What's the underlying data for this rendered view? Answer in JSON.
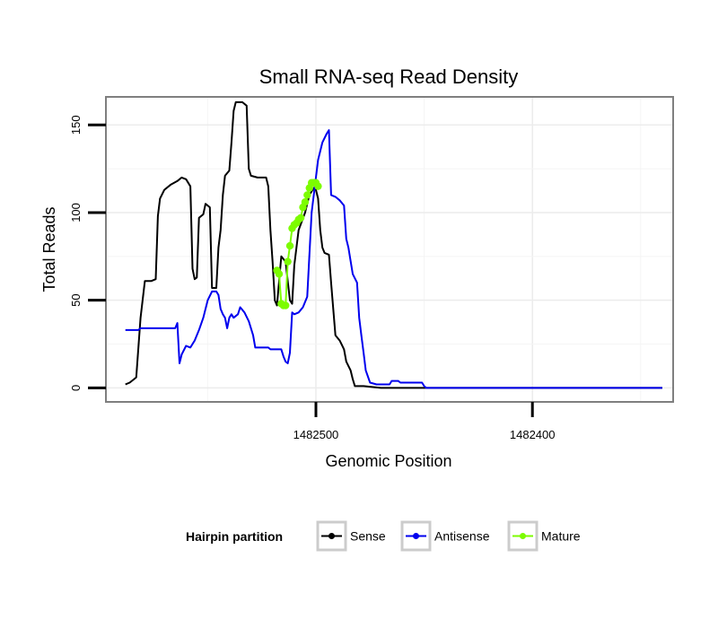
{
  "chart_data": {
    "type": "line",
    "title": "Small RNA-seq Read Density",
    "xlabel": "Genomic Position",
    "ylabel": "Total Reads",
    "xlim": [
      1482597,
      1482335
    ],
    "ylim": [
      -8,
      166
    ],
    "x_reversed": true,
    "x_ticks": [
      1482500,
      1482400
    ],
    "x_tick_labels": [
      "1482500",
      "1482400"
    ],
    "y_ticks": [
      0,
      50,
      100,
      150
    ],
    "y_tick_labels": [
      "0",
      "50",
      "100",
      "150"
    ],
    "grid": true,
    "legend": {
      "position": "bottom",
      "title": "Hairpin partition",
      "entries": [
        "Sense",
        "Antisense",
        "Mature"
      ]
    },
    "series": [
      {
        "name": "Sense",
        "color": "#000000",
        "style": "line",
        "points": [
          [
            1482588,
            2
          ],
          [
            1482586,
            3
          ],
          [
            1482584,
            5
          ],
          [
            1482583,
            6
          ],
          [
            1482581,
            40
          ],
          [
            1482579,
            61
          ],
          [
            1482576,
            61
          ],
          [
            1482574,
            62
          ],
          [
            1482573,
            98
          ],
          [
            1482572,
            108
          ],
          [
            1482570,
            113
          ],
          [
            1482567,
            116
          ],
          [
            1482564,
            118
          ],
          [
            1482562,
            120
          ],
          [
            1482560,
            119
          ],
          [
            1482558,
            115
          ],
          [
            1482557,
            68
          ],
          [
            1482556,
            62
          ],
          [
            1482555,
            63
          ],
          [
            1482554,
            97
          ],
          [
            1482552,
            99
          ],
          [
            1482551,
            105
          ],
          [
            1482550,
            104
          ],
          [
            1482549,
            103
          ],
          [
            1482548,
            57
          ],
          [
            1482546,
            57
          ],
          [
            1482545,
            80
          ],
          [
            1482544,
            90
          ],
          [
            1482543,
            110
          ],
          [
            1482542,
            121
          ],
          [
            1482540,
            124
          ],
          [
            1482539,
            140
          ],
          [
            1482538,
            158
          ],
          [
            1482537,
            163
          ],
          [
            1482534,
            163
          ],
          [
            1482532,
            161
          ],
          [
            1482531,
            125
          ],
          [
            1482530,
            121
          ],
          [
            1482527,
            120
          ],
          [
            1482523,
            120
          ],
          [
            1482522,
            115
          ],
          [
            1482521,
            90
          ],
          [
            1482520,
            72
          ],
          [
            1482519,
            50
          ],
          [
            1482518,
            47
          ],
          [
            1482516,
            75
          ],
          [
            1482514,
            72
          ],
          [
            1482512,
            50
          ],
          [
            1482511,
            48
          ],
          [
            1482510,
            70
          ],
          [
            1482508,
            90
          ],
          [
            1482505,
            100
          ],
          [
            1482503,
            110
          ],
          [
            1482501,
            114
          ],
          [
            1482500,
            113
          ],
          [
            1482499,
            108
          ],
          [
            1482498,
            90
          ],
          [
            1482497,
            80
          ],
          [
            1482496,
            77
          ],
          [
            1482494,
            76
          ],
          [
            1482493,
            60
          ],
          [
            1482492,
            45
          ],
          [
            1482491,
            30
          ],
          [
            1482489,
            27
          ],
          [
            1482487,
            22
          ],
          [
            1482486,
            15
          ],
          [
            1482484,
            10
          ],
          [
            1482483,
            5
          ],
          [
            1482482,
            1
          ],
          [
            1482478,
            1
          ],
          [
            1482470,
            0
          ],
          [
            1482340,
            0
          ]
        ]
      },
      {
        "name": "Antisense",
        "color": "#0000ee",
        "style": "line",
        "points": [
          [
            1482588,
            33
          ],
          [
            1482582,
            33
          ],
          [
            1482581,
            34
          ],
          [
            1482565,
            34
          ],
          [
            1482564,
            37
          ],
          [
            1482563,
            14
          ],
          [
            1482562,
            19
          ],
          [
            1482560,
            24
          ],
          [
            1482558,
            23
          ],
          [
            1482556,
            27
          ],
          [
            1482554,
            33
          ],
          [
            1482552,
            40
          ],
          [
            1482550,
            50
          ],
          [
            1482548,
            55
          ],
          [
            1482546,
            55
          ],
          [
            1482545,
            53
          ],
          [
            1482544,
            45
          ],
          [
            1482543,
            42
          ],
          [
            1482542,
            40
          ],
          [
            1482541,
            34
          ],
          [
            1482540,
            40
          ],
          [
            1482539,
            42
          ],
          [
            1482538,
            40
          ],
          [
            1482536,
            42
          ],
          [
            1482535,
            46
          ],
          [
            1482533,
            43
          ],
          [
            1482531,
            38
          ],
          [
            1482529,
            30
          ],
          [
            1482528,
            23
          ],
          [
            1482522,
            23
          ],
          [
            1482521,
            22
          ],
          [
            1482516,
            22
          ],
          [
            1482515,
            18
          ],
          [
            1482514,
            15
          ],
          [
            1482513,
            14
          ],
          [
            1482512,
            20
          ],
          [
            1482511,
            43
          ],
          [
            1482510,
            42
          ],
          [
            1482508,
            43
          ],
          [
            1482506,
            46
          ],
          [
            1482504,
            52
          ],
          [
            1482502,
            100
          ],
          [
            1482501,
            110
          ],
          [
            1482499,
            130
          ],
          [
            1482497,
            140
          ],
          [
            1482495,
            145
          ],
          [
            1482494,
            147
          ],
          [
            1482493,
            110
          ],
          [
            1482491,
            109
          ],
          [
            1482489,
            107
          ],
          [
            1482487,
            104
          ],
          [
            1482486,
            85
          ],
          [
            1482485,
            80
          ],
          [
            1482483,
            65
          ],
          [
            1482481,
            60
          ],
          [
            1482480,
            40
          ],
          [
            1482479,
            30
          ],
          [
            1482478,
            20
          ],
          [
            1482477,
            10
          ],
          [
            1482475,
            3
          ],
          [
            1482472,
            2
          ],
          [
            1482466,
            2
          ],
          [
            1482465,
            4
          ],
          [
            1482462,
            4
          ],
          [
            1482461,
            3
          ],
          [
            1482451,
            3
          ],
          [
            1482450,
            1
          ],
          [
            1482449,
            0
          ],
          [
            1482340,
            0
          ]
        ]
      },
      {
        "name": "Mature",
        "color": "#7cfc00",
        "style": "line+points",
        "points": [
          [
            1482518,
            67
          ],
          [
            1482517,
            65
          ],
          [
            1482516,
            48
          ],
          [
            1482515,
            47
          ],
          [
            1482514,
            47
          ],
          [
            1482513,
            72
          ],
          [
            1482512,
            81
          ],
          [
            1482511,
            91
          ],
          [
            1482510,
            93
          ],
          [
            1482509,
            94
          ],
          [
            1482508,
            96
          ],
          [
            1482507,
            97
          ],
          [
            1482506,
            103
          ],
          [
            1482505,
            106
          ],
          [
            1482504,
            110
          ],
          [
            1482503,
            114
          ],
          [
            1482502,
            117
          ],
          [
            1482501,
            117
          ],
          [
            1482500,
            117
          ],
          [
            1482499,
            115
          ]
        ]
      }
    ]
  }
}
